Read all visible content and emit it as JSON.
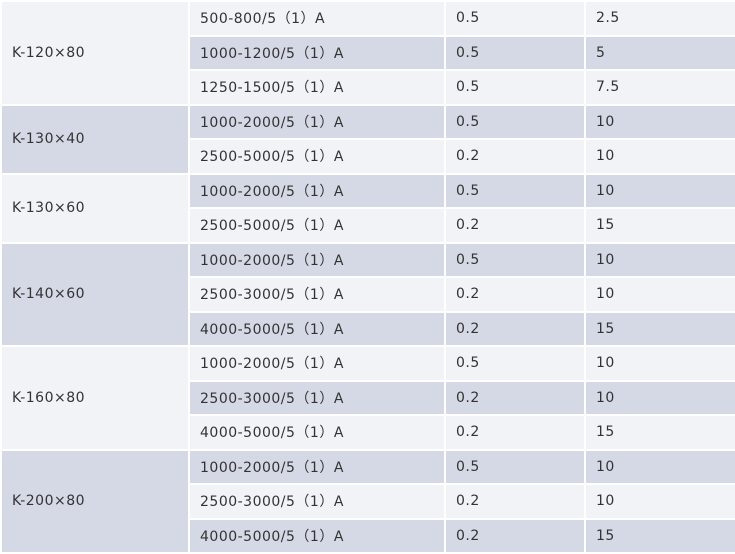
{
  "table": {
    "groups": [
      {
        "model": "K-120×80",
        "rows": [
          [
            "500-800/5（1）A",
            "0.5",
            "2.5"
          ],
          [
            "1000-1200/5（1）A",
            "0.5",
            "5"
          ],
          [
            "1250-1500/5（1）A",
            "0.5",
            "7.5"
          ]
        ]
      },
      {
        "model": "K-130×40",
        "rows": [
          [
            "1000-2000/5（1）A",
            "0.5",
            "10"
          ],
          [
            "2500-5000/5（1）A",
            "0.2",
            "10"
          ]
        ]
      },
      {
        "model": "K-130×60",
        "rows": [
          [
            "1000-2000/5（1）A",
            "0.5",
            "10"
          ],
          [
            "2500-5000/5（1）A",
            "0.2",
            "15"
          ]
        ]
      },
      {
        "model": "K-140×60",
        "rows": [
          [
            "1000-2000/5（1）A",
            "0.5",
            "10"
          ],
          [
            "2500-3000/5（1）A",
            "0.2",
            "10"
          ],
          [
            "4000-5000/5（1）A",
            "0.2",
            "15"
          ]
        ]
      },
      {
        "model": "K-160×80",
        "rows": [
          [
            "1000-2000/5（1）A",
            "0.5",
            "10"
          ],
          [
            "2500-3000/5（1）A",
            "0.2",
            "10"
          ],
          [
            "4000-5000/5（1）A",
            "0.2",
            "15"
          ]
        ]
      },
      {
        "model": "K-200×80",
        "rows": [
          [
            "1000-2000/5（1）A",
            "0.5",
            "10"
          ],
          [
            "2500-3000/5（1）A",
            "0.2",
            "10"
          ],
          [
            "4000-5000/5（1）A",
            "0.2",
            "15"
          ]
        ]
      }
    ]
  }
}
